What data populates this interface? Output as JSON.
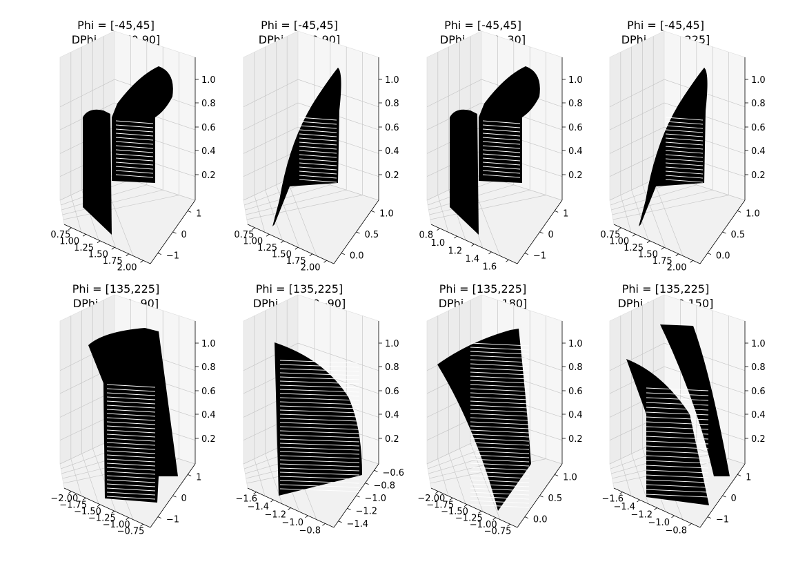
{
  "chart_data": [
    {
      "type": "scatter",
      "title_line1": "Phi = [-45,45]",
      "title_line2": "DPhi = [270,90]",
      "x_ticks": [
        "0.75",
        "1.00",
        "1.25",
        "1.50",
        "1.75",
        "2.00"
      ],
      "y_ticks": [
        "1",
        "0",
        "−1"
      ],
      "z_ticks": [
        "0.2",
        "0.4",
        "0.6",
        "0.8",
        "1.0"
      ],
      "shape": "double"
    },
    {
      "type": "scatter",
      "title_line1": "Phi = [-45,45]",
      "title_line2": "DPhi = [00,90]",
      "x_ticks": [
        "0.75",
        "1.00",
        "1.25",
        "1.50",
        "1.75",
        "2.00"
      ],
      "y_ticks": [
        "1.0",
        "0.5",
        "0.0"
      ],
      "z_ticks": [
        "0.2",
        "0.4",
        "0.6",
        "0.8",
        "1.0"
      ],
      "shape": "single"
    },
    {
      "type": "scatter",
      "title_line1": "Phi = [-45,45]",
      "title_line2": "DPhi = [30,-30]",
      "x_ticks": [
        "0.8",
        "1.0",
        "1.2",
        "1.4",
        "1.6"
      ],
      "y_ticks": [
        "1",
        "0",
        "−1"
      ],
      "z_ticks": [
        "0.2",
        "0.4",
        "0.6",
        "0.8",
        "1.0"
      ],
      "shape": "double"
    },
    {
      "type": "scatter",
      "title_line1": "Phi = [-45,45]",
      "title_line2": "DPhi = [00,225]",
      "x_ticks": [
        "0.75",
        "1.00",
        "1.25",
        "1.50",
        "1.75",
        "2.00"
      ],
      "y_ticks": [
        "1.0",
        "0.5",
        "0.0"
      ],
      "z_ticks": [
        "0.2",
        "0.4",
        "0.6",
        "0.8",
        "1.0"
      ],
      "shape": "single"
    },
    {
      "type": "scatter",
      "title_line1": "Phi = [135,225]",
      "title_line2": "DPhi = [90,-90]",
      "x_ticks": [
        "−2.00",
        "−1.75",
        "−1.50",
        "−1.25",
        "−1.00",
        "−0.75"
      ],
      "y_ticks": [
        "1",
        "0",
        "−1"
      ],
      "z_ticks": [
        "0.2",
        "0.4",
        "0.6",
        "0.8",
        "1.0"
      ],
      "shape": "wide"
    },
    {
      "type": "scatter",
      "title_line1": "Phi = [135,225]",
      "title_line2": "DPhi = [210,-90]",
      "x_ticks": [
        "−1.6",
        "−1.4",
        "−1.2",
        "−1.0",
        "−0.8"
      ],
      "y_ticks": [
        "−0.6",
        "−0.8",
        "−1.0",
        "−1.2",
        "−1.4"
      ],
      "z_ticks": [
        "0.2",
        "0.4",
        "0.6",
        "0.8",
        "1.0"
      ],
      "shape": "quarter"
    },
    {
      "type": "scatter",
      "title_line1": "Phi = [135,225]",
      "title_line2": "DPhi = [90,180]",
      "x_ticks": [
        "−2.00",
        "−1.75",
        "−1.50",
        "−1.25",
        "−1.00",
        "−0.75"
      ],
      "y_ticks": [
        "1.0",
        "0.5",
        "0.0"
      ],
      "z_ticks": [
        "0.2",
        "0.4",
        "0.6",
        "0.8",
        "1.0"
      ],
      "shape": "fan"
    },
    {
      "type": "scatter",
      "title_line1": "Phi = [135,225]",
      "title_line2": "DPhi = [210,150]",
      "x_ticks": [
        "−1.6",
        "−1.4",
        "−1.2",
        "−1.0",
        "−0.8"
      ],
      "y_ticks": [
        "1",
        "0",
        "−1"
      ],
      "z_ticks": [
        "0.2",
        "0.4",
        "0.6",
        "0.8",
        "1.0"
      ],
      "shape": "split"
    }
  ]
}
